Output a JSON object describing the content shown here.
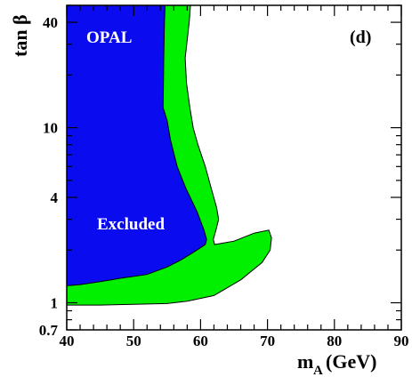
{
  "chart_data": {
    "type": "area",
    "xlabel_main": "m",
    "xlabel_sub": "A",
    "xlabel_unit": "(GeV)",
    "ylabel": "tan β",
    "x_range": [
      40,
      90
    ],
    "y_range": [
      0.7,
      50
    ],
    "y_scale": "log",
    "x_ticks": [
      40,
      50,
      60,
      70,
      80,
      90
    ],
    "x_tick_labels": [
      "40",
      "50",
      "60",
      "70",
      "80",
      "90"
    ],
    "y_ticks": [
      0.7,
      1,
      4,
      10,
      40
    ],
    "y_tick_labels": [
      "0.7",
      "1",
      "4",
      "10",
      "40"
    ],
    "panel_label": "(d)",
    "experiment_label": "OPAL",
    "region_label": "Excluded",
    "colors": {
      "excluded": "#0b0bf0",
      "band": "#00f000",
      "outline": "#000000"
    },
    "regions": [
      {
        "name": "band",
        "points": [
          [
            40.0,
            50
          ],
          [
            58.5,
            50
          ],
          [
            58.3,
            40
          ],
          [
            57.7,
            25
          ],
          [
            57.9,
            18
          ],
          [
            58.4,
            13
          ],
          [
            58.9,
            10
          ],
          [
            59.6,
            8
          ],
          [
            60.7,
            6
          ],
          [
            61.6,
            4.5
          ],
          [
            62.4,
            3.5
          ],
          [
            62.7,
            3.0
          ],
          [
            62.3,
            2.6
          ],
          [
            61.9,
            2.3
          ],
          [
            62.1,
            2.15
          ],
          [
            65.0,
            2.25
          ],
          [
            68.0,
            2.5
          ],
          [
            70.2,
            2.6
          ],
          [
            70.6,
            2.35
          ],
          [
            70.4,
            2.0
          ],
          [
            69.2,
            1.7
          ],
          [
            66.0,
            1.35
          ],
          [
            62.0,
            1.1
          ],
          [
            58.0,
            1.02
          ],
          [
            55.0,
            0.99
          ],
          [
            50.0,
            0.98
          ],
          [
            45.0,
            0.97
          ],
          [
            40.0,
            0.97
          ]
        ]
      },
      {
        "name": "excluded",
        "points": [
          [
            40.0,
            50
          ],
          [
            54.7,
            50
          ],
          [
            54.6,
            40
          ],
          [
            54.5,
            25
          ],
          [
            54.4,
            13
          ],
          [
            55.0,
            11
          ],
          [
            55.5,
            8.5
          ],
          [
            56.5,
            6
          ],
          [
            57.8,
            4.5
          ],
          [
            59.5,
            3.3
          ],
          [
            60.5,
            2.6
          ],
          [
            60.9,
            2.3
          ],
          [
            60.7,
            2.15
          ],
          [
            59.0,
            1.95
          ],
          [
            57.0,
            1.75
          ],
          [
            55.0,
            1.6
          ],
          [
            52.0,
            1.45
          ],
          [
            48.0,
            1.38
          ],
          [
            45.0,
            1.32
          ],
          [
            42.0,
            1.27
          ],
          [
            40.0,
            1.25
          ]
        ]
      }
    ]
  }
}
